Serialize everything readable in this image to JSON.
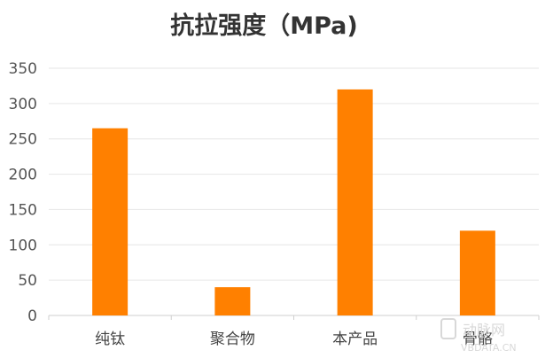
{
  "chart_data": {
    "type": "bar",
    "title": "抗拉强度（MPa)",
    "categories": [
      "纯钛",
      "聚合物",
      "本产品",
      "骨骼"
    ],
    "values": [
      265,
      40,
      320,
      120
    ],
    "ylim": [
      0,
      350
    ],
    "yticks": [
      0,
      50,
      100,
      150,
      200,
      250,
      300,
      350
    ],
    "grid": true,
    "legend": "none",
    "bar_color": "#ff8000"
  },
  "watermark": {
    "text": "动脉网",
    "sub": "VBDATA.CN"
  }
}
